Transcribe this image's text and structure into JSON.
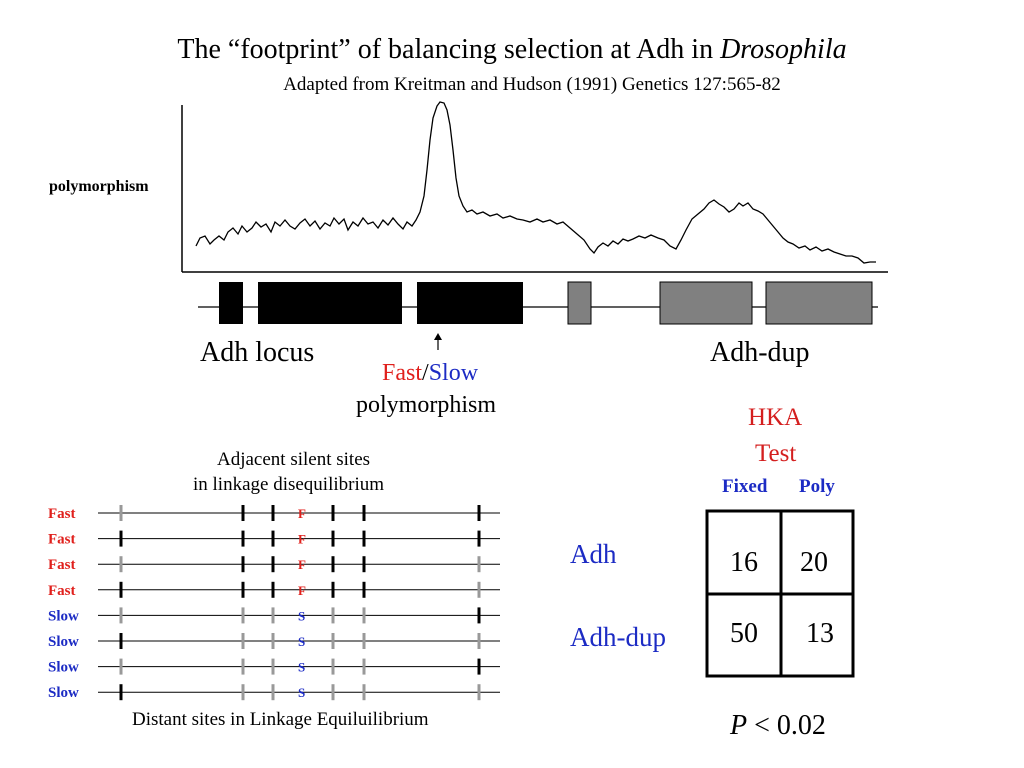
{
  "title": {
    "main_prefix": "The “footprint” of balancing selection at Adh in ",
    "main_italic": "Drosophila",
    "subtitle": "Adapted from Kreitman and Hudson (1991) Genetics 127:565-82"
  },
  "polymorphism_plot": {
    "ylabel": "polymorphism"
  },
  "gene_map": {
    "left_label": "Adh locus",
    "right_label": "Adh-dup",
    "arrow_label": {
      "fast": "Fast",
      "slash": "/",
      "slow": "Slow",
      "second_line": "polymorphism"
    }
  },
  "haplotypes": {
    "title_line1": "Adjacent silent sites",
    "title_line2": "in linkage disequilibrium",
    "footer": "Distant sites in Linkage Equiluilibrium",
    "rows": [
      {
        "label": "Fast",
        "allele": "F",
        "type": "fast"
      },
      {
        "label": "Fast",
        "allele": "F",
        "type": "fast"
      },
      {
        "label": "Fast",
        "allele": "F",
        "type": "fast"
      },
      {
        "label": "Fast",
        "allele": "F",
        "type": "fast"
      },
      {
        "label": "Slow",
        "allele": "S",
        "type": "slow"
      },
      {
        "label": "Slow",
        "allele": "S",
        "type": "slow"
      },
      {
        "label": "Slow",
        "allele": "S",
        "type": "slow"
      },
      {
        "label": "Slow",
        "allele": "S",
        "type": "slow"
      }
    ],
    "site_states": [
      [
        "gray",
        "black",
        "black",
        "black",
        "black",
        "black"
      ],
      [
        "black",
        "black",
        "black",
        "black",
        "black",
        "black"
      ],
      [
        "gray",
        "black",
        "black",
        "black",
        "black",
        "gray"
      ],
      [
        "black",
        "black",
        "black",
        "black",
        "black",
        "gray"
      ],
      [
        "gray",
        "gray",
        "gray",
        "gray",
        "gray",
        "black"
      ],
      [
        "black",
        "gray",
        "gray",
        "gray",
        "gray",
        "gray"
      ],
      [
        "gray",
        "gray",
        "gray",
        "gray",
        "gray",
        "black"
      ],
      [
        "black",
        "gray",
        "gray",
        "gray",
        "gray",
        "gray"
      ]
    ]
  },
  "hka": {
    "title_line1": "HKA",
    "title_line2": "Test",
    "col_fixed": "Fixed",
    "col_poly": "Poly",
    "row_adh": "Adh",
    "row_dup": "Adh-dup",
    "adh_fixed": "16",
    "adh_poly": "20",
    "dup_fixed": "50",
    "dup_poly": "13",
    "p_symbol": "P",
    "p_rest": " < 0.02"
  },
  "colors": {
    "fast": "#e0201c",
    "slow": "#1c2bc4",
    "hka": "#d41f1f",
    "gray_box": "#808080"
  }
}
